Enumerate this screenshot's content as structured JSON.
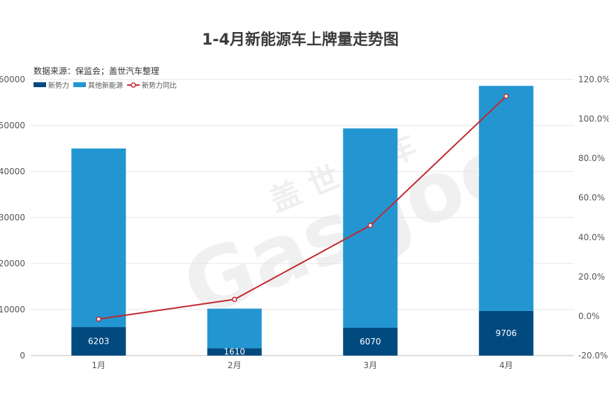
{
  "chart_data": {
    "type": "bar",
    "title": "1-4月新能源车上牌量走势图",
    "source": "数据来源：保监会；盖世汽车整理",
    "watermark": {
      "cn": "盖 世 汽 车",
      "en": "Gasgoo"
    },
    "categories": [
      "1月",
      "2月",
      "3月",
      "4月"
    ],
    "stacked": true,
    "series": [
      {
        "name": "新势力",
        "type": "bar",
        "axis": "left",
        "color": "#004a80",
        "values": [
          6203,
          1610,
          6070,
          9706
        ],
        "labels": [
          "6203",
          "1610",
          "6070",
          "9706"
        ]
      },
      {
        "name": "其他新能源",
        "type": "bar",
        "axis": "left",
        "color": "#2396d2",
        "values": [
          38800,
          8600,
          43300,
          48900
        ]
      },
      {
        "name": "新势力同比",
        "type": "line",
        "axis": "right",
        "color": "#c0282d",
        "values": [
          -1.5,
          8.5,
          46.0,
          111.5
        ]
      }
    ],
    "yaxis_left": {
      "min": 0,
      "max": 60000,
      "step": 10000,
      "ticks": [
        "0",
        "10000",
        "20000",
        "30000",
        "40000",
        "50000",
        "60000"
      ]
    },
    "yaxis_right": {
      "min": -20,
      "max": 120,
      "step": 20,
      "ticks": [
        "-20.0%",
        "0.0%",
        "20.0%",
        "40.0%",
        "60.0%",
        "80.0%",
        "100.0%",
        "120.0%"
      ]
    },
    "grid": true,
    "legend_position": "top-left"
  }
}
